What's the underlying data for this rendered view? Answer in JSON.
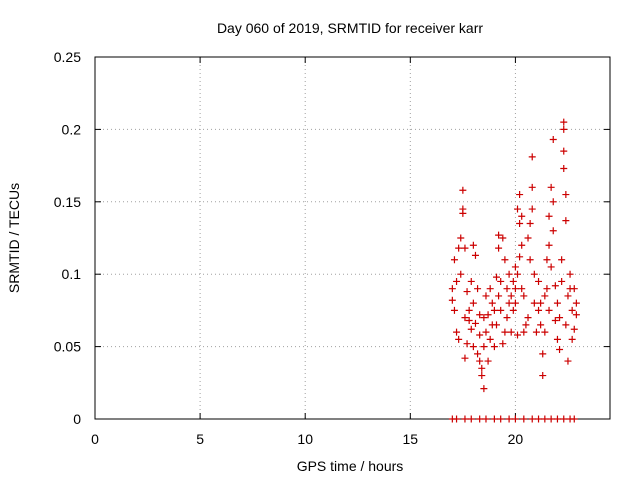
{
  "chart_data": {
    "type": "scatter",
    "title": "Day 060 of 2019, SRMTID for receiver karr",
    "xlabel": "GPS time / hours",
    "ylabel": "SRMTID / TECUs",
    "xlim": [
      0,
      24.5
    ],
    "ylim": [
      0,
      0.25
    ],
    "x_ticks": [
      "0",
      "5",
      "10",
      "15",
      "20"
    ],
    "y_ticks": [
      "0",
      "0.05",
      "0.1",
      "0.15",
      "0.2",
      "0.25"
    ],
    "grid": true,
    "marker": "plus",
    "color": "#cc0000",
    "points": [
      [
        17.0,
        0.09
      ],
      [
        17.0,
        0.082
      ],
      [
        17.1,
        0.11
      ],
      [
        17.1,
        0.075
      ],
      [
        17.2,
        0.095
      ],
      [
        17.2,
        0.06
      ],
      [
        17.3,
        0.055
      ],
      [
        17.3,
        0.118
      ],
      [
        17.4,
        0.125
      ],
      [
        17.4,
        0.1
      ],
      [
        17.5,
        0.158
      ],
      [
        17.5,
        0.145
      ],
      [
        17.5,
        0.142
      ],
      [
        17.6,
        0.118
      ],
      [
        17.6,
        0.07
      ],
      [
        17.6,
        0.042
      ],
      [
        17.7,
        0.052
      ],
      [
        17.7,
        0.088
      ],
      [
        17.8,
        0.075
      ],
      [
        17.8,
        0.068
      ],
      [
        17.9,
        0.095
      ],
      [
        17.9,
        0.062
      ],
      [
        18.0,
        0.12
      ],
      [
        18.0,
        0.08
      ],
      [
        18.0,
        0.05
      ],
      [
        18.1,
        0.113
      ],
      [
        18.1,
        0.066
      ],
      [
        18.2,
        0.09
      ],
      [
        18.2,
        0.045
      ],
      [
        18.3,
        0.072
      ],
      [
        18.3,
        0.058
      ],
      [
        18.3,
        0.04
      ],
      [
        18.4,
        0.035
      ],
      [
        18.4,
        0.03
      ],
      [
        18.5,
        0.021
      ],
      [
        18.5,
        0.05
      ],
      [
        18.5,
        0.07
      ],
      [
        18.6,
        0.06
      ],
      [
        18.6,
        0.085
      ],
      [
        18.7,
        0.04
      ],
      [
        18.7,
        0.072
      ],
      [
        18.8,
        0.09
      ],
      [
        18.8,
        0.055
      ],
      [
        18.9,
        0.065
      ],
      [
        18.9,
        0.08
      ],
      [
        19.0,
        0.05
      ],
      [
        19.0,
        0.075
      ],
      [
        19.1,
        0.098
      ],
      [
        19.1,
        0.065
      ],
      [
        19.2,
        0.127
      ],
      [
        19.2,
        0.118
      ],
      [
        19.2,
        0.085
      ],
      [
        19.3,
        0.075
      ],
      [
        19.3,
        0.095
      ],
      [
        19.4,
        0.125
      ],
      [
        19.4,
        0.052
      ],
      [
        19.5,
        0.06
      ],
      [
        19.5,
        0.11
      ],
      [
        19.6,
        0.09
      ],
      [
        19.6,
        0.07
      ],
      [
        19.7,
        0.1
      ],
      [
        19.7,
        0.08
      ],
      [
        19.8,
        0.085
      ],
      [
        19.8,
        0.06
      ],
      [
        19.9,
        0.095
      ],
      [
        19.9,
        0.075
      ],
      [
        20.0,
        0.105
      ],
      [
        20.0,
        0.09
      ],
      [
        20.0,
        0.08
      ],
      [
        20.1,
        0.145
      ],
      [
        20.1,
        0.1
      ],
      [
        20.1,
        0.058
      ],
      [
        20.2,
        0.155
      ],
      [
        20.2,
        0.135
      ],
      [
        20.2,
        0.112
      ],
      [
        20.3,
        0.14
      ],
      [
        20.3,
        0.12
      ],
      [
        20.3,
        0.09
      ],
      [
        20.4,
        0.085
      ],
      [
        20.4,
        0.06
      ],
      [
        20.5,
        0.065
      ],
      [
        20.6,
        0.07
      ],
      [
        20.6,
        0.125
      ],
      [
        20.7,
        0.135
      ],
      [
        20.7,
        0.11
      ],
      [
        20.8,
        0.145
      ],
      [
        20.8,
        0.16
      ],
      [
        20.8,
        0.181
      ],
      [
        20.9,
        0.1
      ],
      [
        20.9,
        0.08
      ],
      [
        21.0,
        0.06
      ],
      [
        21.1,
        0.095
      ],
      [
        21.1,
        0.075
      ],
      [
        21.2,
        0.08
      ],
      [
        21.2,
        0.065
      ],
      [
        21.3,
        0.045
      ],
      [
        21.3,
        0.03
      ],
      [
        21.4,
        0.06
      ],
      [
        21.4,
        0.085
      ],
      [
        21.5,
        0.11
      ],
      [
        21.5,
        0.09
      ],
      [
        21.6,
        0.14
      ],
      [
        21.6,
        0.12
      ],
      [
        21.6,
        0.075
      ],
      [
        21.7,
        0.16
      ],
      [
        21.7,
        0.105
      ],
      [
        21.8,
        0.193
      ],
      [
        21.8,
        0.15
      ],
      [
        21.8,
        0.13
      ],
      [
        21.9,
        0.092
      ],
      [
        21.9,
        0.068
      ],
      [
        22.0,
        0.08
      ],
      [
        22.0,
        0.055
      ],
      [
        22.1,
        0.07
      ],
      [
        22.1,
        0.048
      ],
      [
        22.2,
        0.11
      ],
      [
        22.2,
        0.095
      ],
      [
        22.3,
        0.2
      ],
      [
        22.3,
        0.185
      ],
      [
        22.3,
        0.205
      ],
      [
        22.3,
        0.173
      ],
      [
        22.4,
        0.155
      ],
      [
        22.4,
        0.137
      ],
      [
        22.4,
        0.065
      ],
      [
        22.5,
        0.085
      ],
      [
        22.5,
        0.04
      ],
      [
        22.6,
        0.1
      ],
      [
        22.6,
        0.09
      ],
      [
        22.7,
        0.075
      ],
      [
        22.7,
        0.055
      ],
      [
        22.8,
        0.09
      ],
      [
        22.8,
        0.062
      ],
      [
        22.9,
        0.08
      ],
      [
        22.9,
        0.072
      ],
      [
        17.0,
        0.0
      ],
      [
        17.2,
        0.0
      ],
      [
        17.6,
        0.0
      ],
      [
        17.9,
        0.0
      ],
      [
        18.3,
        0.0
      ],
      [
        18.6,
        0.0
      ],
      [
        19.0,
        0.0
      ],
      [
        19.3,
        0.0
      ],
      [
        19.7,
        0.0
      ],
      [
        20.0,
        0.0
      ],
      [
        20.4,
        0.0
      ],
      [
        20.8,
        0.0
      ],
      [
        21.1,
        0.0
      ],
      [
        21.4,
        0.0
      ],
      [
        21.7,
        0.0
      ],
      [
        22.0,
        0.0
      ],
      [
        22.3,
        0.0
      ],
      [
        22.6,
        0.0
      ],
      [
        22.8,
        0.0
      ]
    ]
  }
}
